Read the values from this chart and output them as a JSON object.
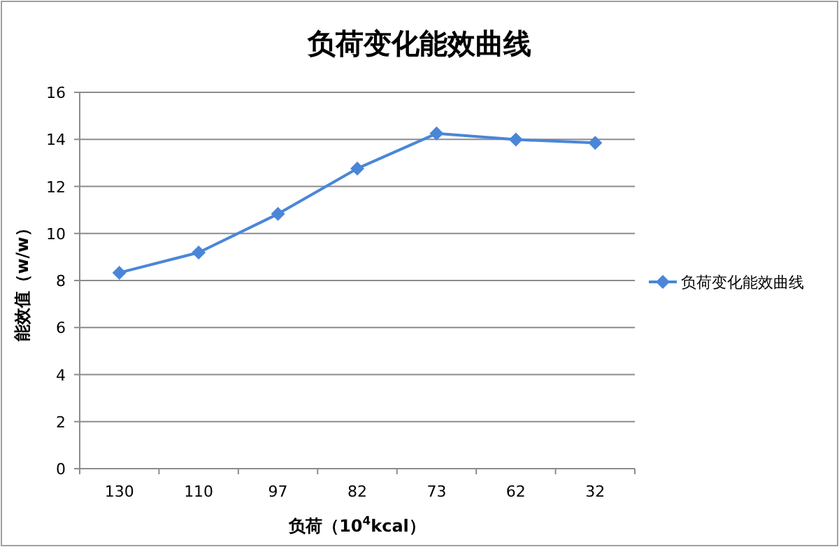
{
  "chart_data": {
    "type": "line",
    "title": "负荷变化能效曲线",
    "xlabel": "负荷（10$^{4}$kcal）",
    "ylabel": "能效值（w/w）",
    "categories": [
      "130",
      "110",
      "97",
      "82",
      "73",
      "62",
      "32"
    ],
    "series": [
      {
        "name": "负荷变化能效曲线",
        "color": "#4a86d8",
        "values": [
          8.33,
          9.19,
          10.83,
          12.76,
          14.25,
          13.99,
          13.85
        ]
      }
    ],
    "ylim": [
      0,
      16
    ],
    "yticks": [
      0,
      2,
      4,
      6,
      8,
      10,
      12,
      14,
      16
    ],
    "grid": "y",
    "legend": "right",
    "marker": "diamond"
  }
}
